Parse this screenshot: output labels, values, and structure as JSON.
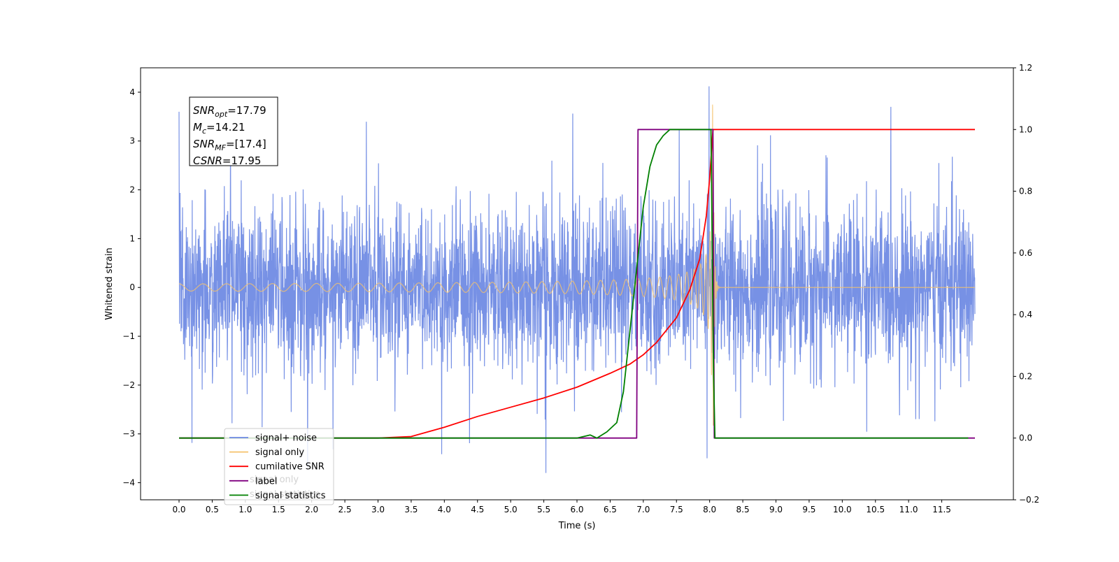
{
  "chart_data": {
    "type": "line",
    "xlabel": "Time (s)",
    "ylabel": "Whitened strain",
    "xlim": [
      -0.58,
      12.58
    ],
    "ylim": [
      -4.35,
      4.5
    ],
    "y2lim": [
      -0.2,
      1.2
    ],
    "x_ticks": [
      "0.0",
      "0.5",
      "1.0",
      "1.5",
      "2.0",
      "2.5",
      "3.0",
      "3.5",
      "4.0",
      "4.5",
      "5.0",
      "5.5",
      "6.0",
      "6.5",
      "7.0",
      "7.5",
      "8.0",
      "8.5",
      "9.0",
      "9.5",
      "10.0",
      "10.5",
      "11.0",
      "11.5"
    ],
    "y_ticks": [
      "−4",
      "−3",
      "−2",
      "−1",
      "0",
      "1",
      "2",
      "3",
      "4"
    ],
    "y2_ticks": [
      "−0.2",
      "0.0",
      "0.2",
      "0.4",
      "0.6",
      "0.8",
      "1.0",
      "1.2"
    ],
    "grid": false,
    "legend_position": "lower-left",
    "annotation": {
      "lines": [
        {
          "main": "SNR",
          "sub": "opt",
          "value": "=17.79"
        },
        {
          "main": "M",
          "sub": "c",
          "value": "=14.21"
        },
        {
          "main": "SNR",
          "sub": "MF",
          "value": "=[17.4]"
        },
        {
          "main": "CSNR",
          "sub": "",
          "value": "=17.95"
        }
      ]
    },
    "series": [
      {
        "name": "signal+ noise",
        "color": "#6b88e3",
        "axis": "left",
        "kind": "noise",
        "typical_amplitude": 1.6,
        "peak_values": [
          3.6,
          4.12,
          -3.8,
          -3.5
        ]
      },
      {
        "name": "signal only",
        "color": "#f5c26b",
        "axis": "left",
        "kind": "chirp",
        "x_start": 0.0,
        "x_merger": 8.05,
        "x_end": 12.0,
        "peak_amplitude": 3.8
      },
      {
        "name": "cumilative SNR",
        "color": "#ff0000",
        "axis": "right",
        "x": [
          0.0,
          3.0,
          3.5,
          4.0,
          4.5,
          5.0,
          5.5,
          6.0,
          6.5,
          6.8,
          7.0,
          7.2,
          7.5,
          7.7,
          7.85,
          7.95,
          8.0,
          8.04,
          8.05,
          12.0
        ],
        "values": [
          0.0,
          0.0,
          0.005,
          0.035,
          0.07,
          0.1,
          0.13,
          0.165,
          0.21,
          0.24,
          0.27,
          0.31,
          0.39,
          0.48,
          0.58,
          0.72,
          0.84,
          0.97,
          1.0,
          1.0
        ]
      },
      {
        "name": "label",
        "color": "#800080",
        "axis": "right",
        "x": [
          0.0,
          6.9,
          6.92,
          8.05,
          8.07,
          12.0
        ],
        "values": [
          0.0,
          0.0,
          1.0,
          1.0,
          0.0,
          0.0
        ]
      },
      {
        "name": "signal statistics",
        "color": "#008000",
        "axis": "right",
        "x": [
          0.0,
          6.0,
          6.2,
          6.3,
          6.45,
          6.6,
          6.7,
          6.8,
          6.9,
          7.0,
          7.1,
          7.2,
          7.3,
          7.4,
          7.6,
          8.02,
          8.06,
          8.08,
          11.9
        ],
        "values": [
          0.0,
          0.0,
          0.01,
          0.0,
          0.02,
          0.05,
          0.15,
          0.35,
          0.55,
          0.75,
          0.88,
          0.95,
          0.98,
          1.0,
          1.0,
          1.0,
          0.2,
          0.0,
          0.0
        ]
      }
    ],
    "legend_ghost_text": [
      "signal only",
      "signal statistics"
    ]
  }
}
